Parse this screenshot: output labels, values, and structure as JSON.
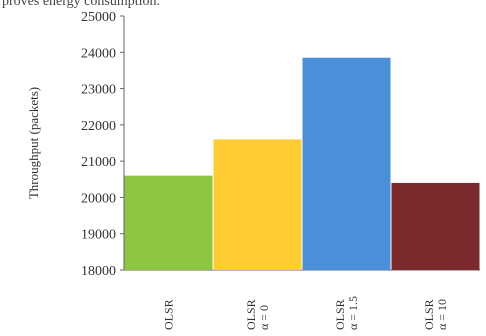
{
  "caption_fragment": "proves energy consumption.",
  "chart_data": {
    "type": "bar",
    "title": "",
    "xlabel": "",
    "ylabel": "Throughput (packets)",
    "categories": [
      [
        "OLSR"
      ],
      [
        "OLSR",
        "α = 0"
      ],
      [
        "OLSR",
        "α = 1.5"
      ],
      [
        "OLSR",
        "α = 10"
      ]
    ],
    "values": [
      20600,
      21600,
      23850,
      20400
    ],
    "colors": [
      "#8DC63F",
      "#FFCC33",
      "#4A90D9",
      "#7B2A2E"
    ],
    "ylim": [
      18000,
      25000
    ],
    "yticks": [
      18000,
      19000,
      20000,
      21000,
      22000,
      23000,
      24000,
      25000
    ],
    "grid": false,
    "legend": "none"
  }
}
